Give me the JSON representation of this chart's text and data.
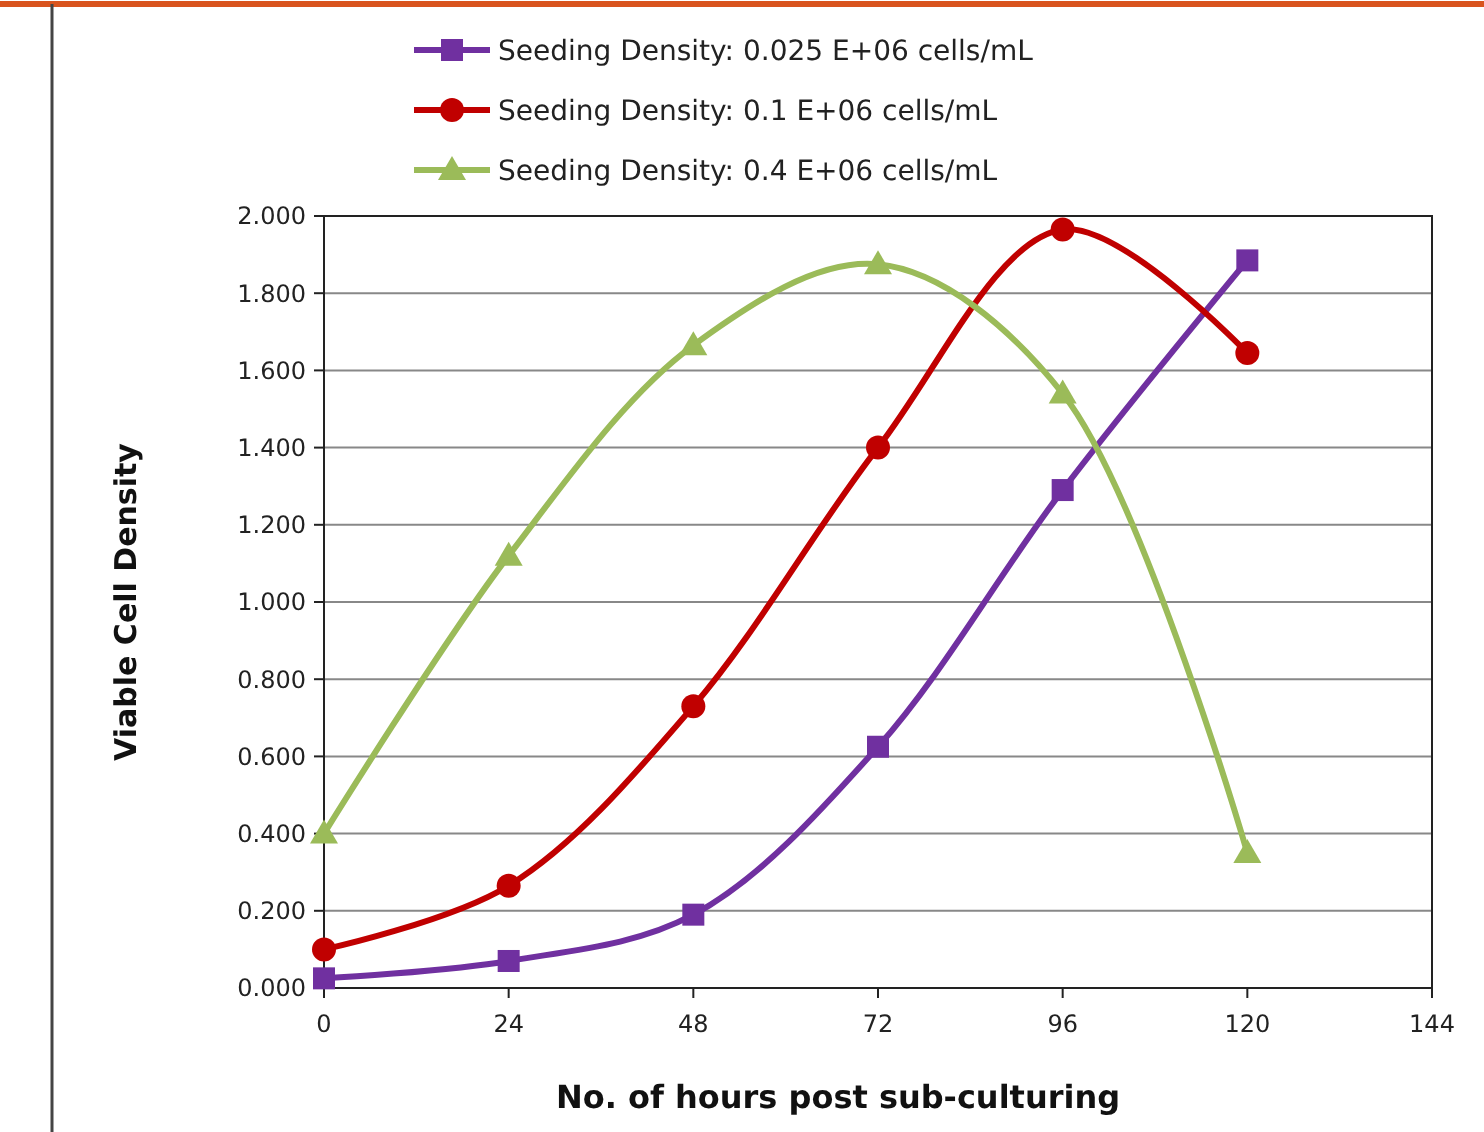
{
  "chart_data": {
    "type": "line",
    "xlabel": "No. of hours post sub-culturing",
    "ylabel": "Viable Cell Density",
    "x": [
      0,
      24,
      48,
      72,
      96,
      120
    ],
    "series": [
      {
        "name": "Seeding Density: 0.025 E+06 cells/mL",
        "color": "#7030a0",
        "marker": "square",
        "values": [
          0.025,
          0.07,
          0.19,
          0.625,
          1.29,
          1.885
        ]
      },
      {
        "name": "Seeding Density: 0.1 E+06 cells/mL",
        "color": "#c00000",
        "marker": "circle",
        "values": [
          0.1,
          0.265,
          0.73,
          1.4,
          1.965,
          1.645
        ]
      },
      {
        "name": "Seeding Density: 0.4 E+06 cells/mL",
        "color": "#9bbb59",
        "marker": "triangle",
        "values": [
          0.4,
          1.12,
          1.665,
          1.875,
          1.54,
          0.35
        ]
      }
    ],
    "xlim": [
      0,
      144
    ],
    "xticks": [
      0,
      24,
      48,
      72,
      96,
      120,
      144
    ],
    "ylim": [
      0,
      2
    ],
    "yticks": [
      {
        "value": 0,
        "label": "0.000"
      },
      {
        "value": 0.2,
        "label": "0.200"
      },
      {
        "value": 0.4,
        "label": "0.400"
      },
      {
        "value": 0.6,
        "label": "0.600"
      },
      {
        "value": 0.8,
        "label": "0.800"
      },
      {
        "value": 1,
        "label": "1.000"
      },
      {
        "value": 1.2,
        "label": "1.200"
      },
      {
        "value": 1.4,
        "label": "1.400"
      },
      {
        "value": 1.6,
        "label": "1.600"
      },
      {
        "value": 1.8,
        "label": "1.800"
      },
      {
        "value": 2,
        "label": "2.000"
      }
    ],
    "grid": "y",
    "legend": "top",
    "line_style": "solid"
  }
}
